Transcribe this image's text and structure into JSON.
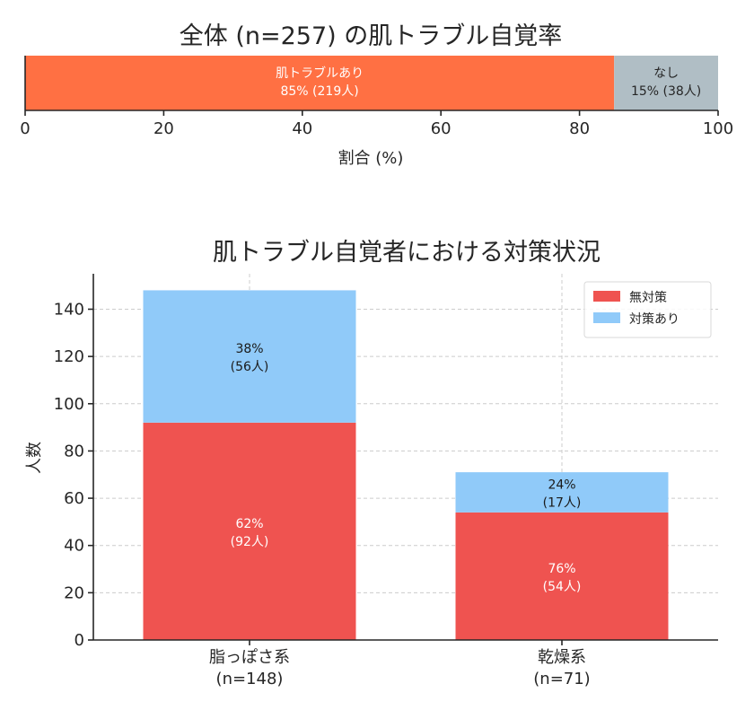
{
  "chart_data": [
    {
      "type": "bar",
      "orientation": "horizontal-stacked",
      "title": "全体 (n=257) の肌トラブル自覚率",
      "xlabel": "割合 (%)",
      "xlim": [
        0,
        100
      ],
      "xticks": [
        "0",
        "20",
        "40",
        "60",
        "80",
        "100"
      ],
      "grid": true,
      "segments": [
        {
          "name": "肌トラブルあり",
          "value": 85,
          "label_line1": "肌トラブルあり",
          "label_line2": "85% (219人)",
          "color": "#ff7043"
        },
        {
          "name": "なし",
          "value": 15,
          "label_line1": "なし",
          "label_line2": "15% (38人)",
          "color": "#b0bec5"
        }
      ]
    },
    {
      "type": "bar",
      "orientation": "vertical-stacked",
      "title": "肌トラブル自覚者における対策状況",
      "ylabel": "人数",
      "ylim": [
        0,
        155
      ],
      "yticks": [
        "0",
        "20",
        "40",
        "60",
        "80",
        "100",
        "120",
        "140"
      ],
      "grid": true,
      "legend_position": "top-right",
      "categories": [
        {
          "line1": "脂っぽさ系",
          "line2": "(n=148)"
        },
        {
          "line1": "乾燥系",
          "line2": "(n=71)"
        }
      ],
      "series": [
        {
          "name": "無対策",
          "color": "#ef5350",
          "values": [
            92,
            54
          ],
          "labels": [
            {
              "line1": "62%",
              "line2": "(92人)"
            },
            {
              "line1": "76%",
              "line2": "(54人)"
            }
          ]
        },
        {
          "name": "対策あり",
          "color": "#90caf9",
          "values": [
            56,
            17
          ],
          "labels": [
            {
              "line1": "38%",
              "line2": "(56人)"
            },
            {
              "line1": "24%",
              "line2": "(17人)"
            }
          ]
        }
      ]
    }
  ]
}
